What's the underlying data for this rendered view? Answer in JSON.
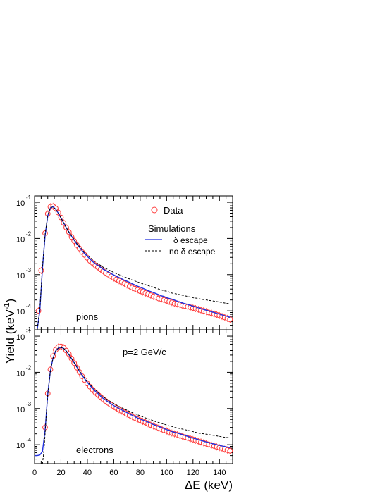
{
  "chart_data": {
    "type": "line",
    "ylabel_base": "Yield (keV",
    "ylabel_exp": "-1",
    "ylabel_close": ")",
    "xlabel": "ΔE (keV)",
    "xlim": [
      0,
      150
    ],
    "ylim": [
      3e-05,
      0.15
    ],
    "y_log": true,
    "x_ticks": [
      "0",
      "20",
      "40",
      "60",
      "80",
      "100",
      "120",
      "140"
    ],
    "y_tick_base": "10",
    "y_tick_exps": [
      "-1",
      "-2",
      "-3",
      "-4"
    ],
    "bottom_extra_exp": "-1",
    "legend": {
      "data_label": "Data",
      "sim_heading": "Simulations",
      "delta_escape": "δ escape",
      "no_delta_escape": "no δ escape"
    },
    "colors": {
      "data": "#ff3b3b",
      "delta_escape": "#1f2fe0",
      "no_delta_escape": "#000000"
    },
    "panels": [
      {
        "name": "pions",
        "label": "pions",
        "series": [
          {
            "name": "Data",
            "style": "markers",
            "x": [
              3,
              5,
              8,
              10,
              12,
              14,
              16,
              18,
              20,
              22,
              24,
              26,
              28,
              30,
              32,
              34,
              36,
              38,
              40,
              42,
              44,
              46,
              48,
              50,
              52,
              54,
              56,
              58,
              60,
              62,
              64,
              66,
              68,
              70,
              72,
              74,
              76,
              78,
              80,
              82,
              84,
              86,
              88,
              90,
              92,
              94,
              96,
              98,
              100,
              102,
              104,
              106,
              108,
              110,
              112,
              114,
              116,
              118,
              120,
              122,
              124,
              126,
              128,
              130,
              132,
              134,
              136,
              138,
              140,
              142,
              144,
              146,
              148
            ],
            "y": [
              0.0001,
              0.0013,
              0.014,
              0.048,
              0.075,
              0.077,
              0.068,
              0.052,
              0.038,
              0.027,
              0.02,
              0.015,
              0.011,
              0.0085,
              0.0066,
              0.0053,
              0.0042,
              0.0035,
              0.0029,
              0.0024,
              0.0021,
              0.0018,
              0.0016,
              0.0014,
              0.00125,
              0.00112,
              0.001,
              0.0009,
              0.00081,
              0.00074,
              0.00068,
              0.00062,
              0.00057,
              0.00052,
              0.00048,
              0.00044,
              0.00041,
              0.00038,
              0.00035,
              0.00033,
              0.00031,
              0.00029,
              0.00027,
              0.00025,
              0.00024,
              0.00022,
              0.00021,
              0.0002,
              0.00019,
              0.00018,
              0.00017,
              0.00016,
              0.000155,
              0.00015,
              0.00014,
              0.000135,
              0.00013,
              0.000125,
              0.00012,
              0.000115,
              0.00011,
              0.000105,
              0.0001,
              9.5e-05,
              9e-05,
              8.6e-05,
              8.2e-05,
              7.8e-05,
              7.4e-05,
              7e-05,
              6.6e-05,
              6.2e-05,
              5.8e-05
            ]
          },
          {
            "name": "δ escape",
            "style": "solid",
            "x": [
              2,
              4,
              6,
              8,
              10,
              12,
              14,
              16,
              18,
              20,
              22,
              24,
              26,
              28,
              30,
              32,
              34,
              36,
              38,
              40,
              42,
              44,
              46,
              48,
              50,
              52,
              54,
              56,
              58,
              60,
              62,
              64,
              66,
              68,
              70,
              72,
              74,
              76,
              78,
              80,
              82,
              84,
              86,
              88,
              90,
              92,
              94,
              96,
              98,
              100,
              102,
              104,
              106,
              108,
              110,
              112,
              114,
              116,
              118,
              120,
              122,
              124,
              126,
              128,
              130,
              132,
              134,
              136,
              138,
              140,
              142,
              144,
              146,
              148
            ],
            "y": [
              3e-05,
              0.0001,
              0.0015,
              0.012,
              0.042,
              0.07,
              0.075,
              0.064,
              0.05,
              0.037,
              0.027,
              0.02,
              0.015,
              0.0115,
              0.009,
              0.007,
              0.0057,
              0.0046,
              0.0038,
              0.0032,
              0.0027,
              0.0023,
              0.002,
              0.0018,
              0.0016,
              0.0014,
              0.0013,
              0.00118,
              0.00107,
              0.00098,
              0.0009,
              0.00083,
              0.00077,
              0.0007,
              0.00066,
              0.00061,
              0.00056,
              0.00052,
              0.00048,
              0.00045,
              0.00042,
              0.00039,
              0.00036,
              0.00034,
              0.00032,
              0.0003,
              0.00028,
              0.00026,
              0.00025,
              0.00023,
              0.00022,
              0.00021,
              0.000198,
              0.000185,
              0.000175,
              0.000165,
              0.000157,
              0.00015,
              0.000142,
              0.000135,
              0.000128,
              0.000121,
              0.000115,
              0.000109,
              0.000104,
              9.9e-05,
              9.4e-05,
              9e-05,
              8.5e-05,
              8.1e-05,
              7.7e-05,
              7.3e-05,
              7e-05,
              6.6e-05
            ]
          },
          {
            "name": "no δ escape",
            "style": "dashed",
            "x": [
              2,
              4,
              6,
              8,
              10,
              12,
              14,
              16,
              18,
              20,
              22,
              24,
              26,
              28,
              30,
              32,
              34,
              36,
              38,
              40,
              42,
              44,
              46,
              48,
              50,
              52,
              54,
              56,
              58,
              60,
              62,
              64,
              66,
              68,
              70,
              72,
              74,
              76,
              78,
              80,
              82,
              84,
              86,
              88,
              90,
              92,
              94,
              96,
              98,
              100,
              102,
              104,
              106,
              108,
              110,
              112,
              114,
              116,
              118,
              120,
              122,
              124,
              126,
              128,
              130,
              132,
              134,
              136,
              138,
              140,
              142,
              144,
              146,
              148
            ],
            "y": [
              3e-05,
              0.00011,
              0.0016,
              0.013,
              0.044,
              0.071,
              0.075,
              0.064,
              0.05,
              0.037,
              0.027,
              0.02,
              0.0152,
              0.0118,
              0.0093,
              0.0073,
              0.006,
              0.0049,
              0.0041,
              0.0035,
              0.003,
              0.0026,
              0.0023,
              0.002,
              0.0018,
              0.0016,
              0.00148,
              0.00136,
              0.00125,
              0.00115,
              0.00107,
              0.001,
              0.00093,
              0.00087,
              0.00081,
              0.00076,
              0.00071,
              0.00067,
              0.00063,
              0.00059,
              0.00056,
              0.00053,
              0.0005,
              0.00047,
              0.00045,
              0.00042,
              0.0004,
              0.00038,
              0.00036,
              0.00035,
              0.00033,
              0.00031,
              0.0003,
              0.00029,
              0.00028,
              0.00027,
              0.00026,
              0.00025,
              0.00024,
              0.00023,
              0.000225,
              0.00022,
              0.00021,
              0.000205,
              0.0002,
              0.000195,
              0.00019,
              0.000185,
              0.00018,
              0.000175,
              0.00017,
              0.000165,
              0.00016,
              0.000155
            ]
          }
        ]
      },
      {
        "name": "electrons",
        "label": "electrons",
        "extra_label": "p=2 GeV/c",
        "series": [
          {
            "name": "Data",
            "style": "markers",
            "x": [
              8,
              10,
              12,
              14,
              16,
              18,
              20,
              22,
              24,
              26,
              28,
              30,
              32,
              34,
              36,
              38,
              40,
              42,
              44,
              46,
              48,
              50,
              52,
              54,
              56,
              58,
              60,
              62,
              64,
              66,
              68,
              70,
              72,
              74,
              76,
              78,
              80,
              82,
              84,
              86,
              88,
              90,
              92,
              94,
              96,
              98,
              100,
              102,
              104,
              106,
              108,
              110,
              112,
              114,
              116,
              118,
              120,
              122,
              124,
              126,
              128,
              130,
              132,
              134,
              136,
              138,
              140,
              142,
              144,
              146,
              148
            ],
            "y": [
              0.0003,
              0.0026,
              0.012,
              0.028,
              0.042,
              0.05,
              0.052,
              0.048,
              0.04,
              0.032,
              0.024,
              0.018,
              0.0135,
              0.0102,
              0.0078,
              0.0061,
              0.0049,
              0.004,
              0.0033,
              0.0028,
              0.0024,
              0.0021,
              0.0018,
              0.0016,
              0.00142,
              0.00127,
              0.00114,
              0.00103,
              0.00093,
              0.00085,
              0.00078,
              0.00071,
              0.00065,
              0.0006,
              0.00055,
              0.00051,
              0.00047,
              0.00044,
              0.00041,
              0.00038,
              0.00035,
              0.00033,
              0.00031,
              0.00029,
              0.00027,
              0.00025,
              0.00024,
              0.00022,
              0.00021,
              0.0002,
              0.00019,
              0.00018,
              0.00017,
              0.000162,
              0.000154,
              0.000146,
              0.000139,
              0.000132,
              0.000125,
              0.000119,
              0.000113,
              0.000107,
              0.000102,
              9.7e-05,
              9.2e-05,
              8.7e-05,
              8.3e-05,
              7.9e-05,
              7.5e-05,
              7.1e-05,
              6.8e-05
            ]
          },
          {
            "name": "δ escape",
            "style": "solid",
            "x": [
              0,
              2,
              4,
              6,
              8,
              10,
              12,
              14,
              16,
              18,
              20,
              22,
              24,
              26,
              28,
              30,
              32,
              34,
              36,
              38,
              40,
              42,
              44,
              46,
              48,
              50,
              52,
              54,
              56,
              58,
              60,
              62,
              64,
              66,
              68,
              70,
              72,
              74,
              76,
              78,
              80,
              82,
              84,
              86,
              88,
              90,
              92,
              94,
              96,
              98,
              100,
              102,
              104,
              106,
              108,
              110,
              112,
              114,
              116,
              118,
              120,
              122,
              124,
              126,
              128,
              130,
              132,
              134,
              136,
              138,
              140,
              142,
              144,
              146,
              148
            ],
            "y": [
              5e-05,
              5e-05,
              5.2e-05,
              6.5e-05,
              0.00025,
              0.0025,
              0.011,
              0.025,
              0.039,
              0.047,
              0.049,
              0.046,
              0.039,
              0.031,
              0.024,
              0.0185,
              0.014,
              0.0107,
              0.0083,
              0.0066,
              0.0053,
              0.0043,
              0.0036,
              0.003,
              0.0026,
              0.0022,
              0.0019,
              0.0017,
              0.0015,
              0.00135,
              0.0012,
              0.0011,
              0.001,
              0.00092,
              0.00084,
              0.00077,
              0.0007,
              0.00065,
              0.0006,
              0.00055,
              0.00051,
              0.00048,
              0.00045,
              0.00042,
              0.00039,
              0.00036,
              0.00034,
              0.00032,
              0.0003,
              0.00028,
              0.00026,
              0.00025,
              0.00023,
              0.00022,
              0.00021,
              0.0002,
              0.00019,
              0.00018,
              0.00017,
              0.00016,
              0.000152,
              0.000145,
              0.000138,
              0.000131,
              0.000125,
              0.000119,
              0.000114,
              0.000109,
              0.000104,
              0.0001,
              9.6e-05,
              9.2e-05,
              8.9e-05,
              8.6e-05,
              8.3e-05
            ]
          },
          {
            "name": "no δ escape",
            "style": "dashed",
            "x": [
              6,
              7,
              8,
              9,
              10,
              12,
              14,
              16,
              18,
              20,
              22,
              24,
              26,
              28,
              30,
              32,
              34,
              36,
              38,
              40,
              42,
              44,
              46,
              48,
              50,
              52,
              54,
              56,
              58,
              60,
              62,
              64,
              66,
              68,
              70,
              72,
              74,
              76,
              78,
              80,
              82,
              84,
              86,
              88,
              90,
              92,
              94,
              96,
              98,
              100,
              102,
              104,
              106,
              108,
              110,
              112,
              114,
              116,
              118,
              120,
              122,
              124,
              126,
              128,
              130,
              132,
              134,
              136,
              138,
              140,
              142,
              144,
              146,
              148
            ],
            "y": [
              3e-05,
              6e-05,
              0.0002,
              0.0008,
              0.0024,
              0.011,
              0.025,
              0.039,
              0.047,
              0.049,
              0.046,
              0.039,
              0.031,
              0.024,
              0.0186,
              0.0142,
              0.011,
              0.0086,
              0.0069,
              0.0056,
              0.0046,
              0.0039,
              0.0033,
              0.0028,
              0.0024,
              0.0021,
              0.00188,
              0.00168,
              0.00151,
              0.00137,
              0.00125,
              0.00114,
              0.00105,
              0.00097,
              0.0009,
              0.00083,
              0.00077,
              0.00072,
              0.00067,
              0.00063,
              0.00059,
              0.00055,
              0.00052,
              0.00049,
              0.00046,
              0.00043,
              0.00041,
              0.00039,
              0.00037,
              0.00035,
              0.00033,
              0.00032,
              0.0003,
              0.00029,
              0.00028,
              0.00027,
              0.00026,
              0.00025,
              0.00024,
              0.00023,
              0.00022,
              0.00021,
              0.000205,
              0.0002,
              0.000195,
              0.00019,
              0.000185,
              0.00018,
              0.000175,
              0.00017,
              0.000165,
              0.00016,
              0.000158,
              0.000155
            ]
          }
        ]
      }
    ]
  }
}
